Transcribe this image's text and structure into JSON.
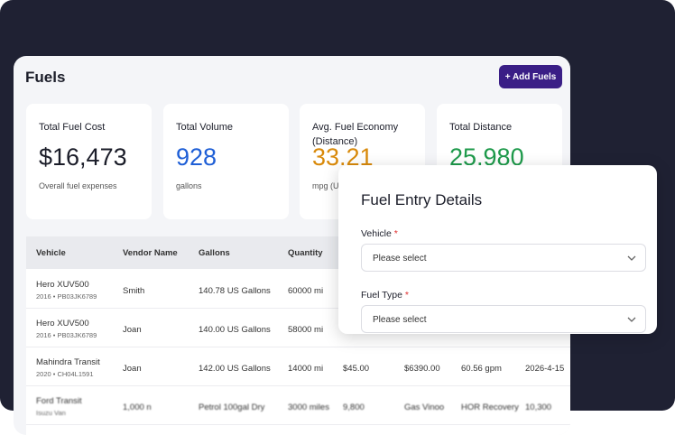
{
  "header": {
    "title": "Fuels",
    "button": "+ Add Fuels"
  },
  "stats": [
    {
      "label": "Total Fuel Cost",
      "value": "$16,473",
      "note": "Overall fuel expenses",
      "color": "#1b1d29"
    },
    {
      "label": "Total Volume",
      "value": "928",
      "note": "gallons",
      "color": "#1f5fd6"
    },
    {
      "label": "Avg. Fuel Economy (Distance)",
      "value": "33.21",
      "note": "mpg (US)",
      "color": "#d98a0b"
    },
    {
      "label": "Total Distance",
      "value": "25,980",
      "color": "#1e9a4b"
    }
  ],
  "table": {
    "columns": [
      "Vehicle",
      "Vendor Name",
      "Gallons",
      "Quantity"
    ],
    "rows": [
      {
        "vehicle": "Hero XUV500",
        "sub": "2016 • PB03JK6789",
        "cells": [
          "Smith",
          "140.78 US Gallons",
          "60000 mi"
        ]
      },
      {
        "vehicle": "Hero XUV500",
        "sub": "2016 • PB03JK6789",
        "cells": [
          "Joan",
          "140.00 US Gallons",
          "58000 mi"
        ]
      },
      {
        "vehicle": "Mahindra Transit",
        "sub": "2020 • CH04L1591",
        "cells": [
          "Joan",
          "142.00 US Gallons",
          "14000 mi",
          "$45.00",
          "$6390.00",
          "60.56 gpm",
          "2026-4-15"
        ]
      },
      {
        "vehicle": "Ford Transit",
        "sub": "Isuzu Van",
        "cells": [
          "1,000 n",
          "Petrol 100gal Dry",
          "3000 miles",
          "9,800",
          "Gas Vinoo",
          "HOR Recovery",
          "10,300"
        ]
      }
    ]
  },
  "modal": {
    "title": "Fuel Entry Details",
    "required": "*",
    "fields": [
      {
        "label": "Vehicle",
        "placeholder": "Please select"
      },
      {
        "label": "Fuel Type",
        "placeholder": "Please select"
      }
    ]
  }
}
